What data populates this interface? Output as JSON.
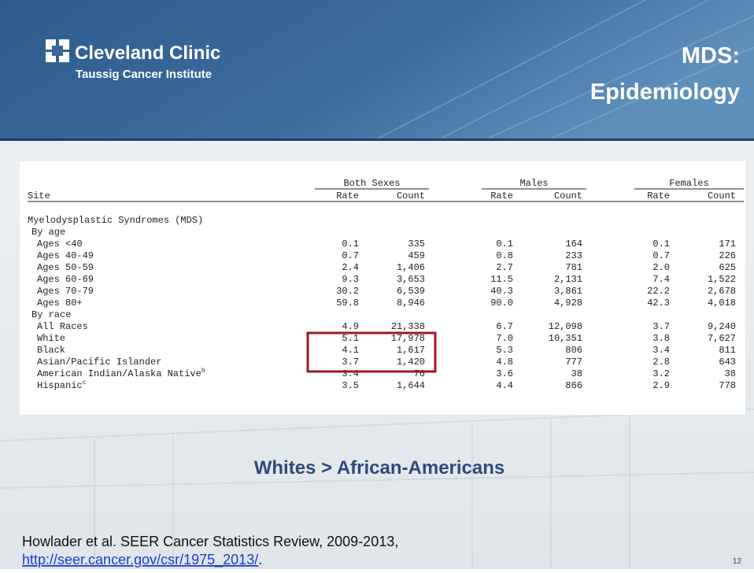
{
  "header": {
    "logo_name": "Cleveland Clinic",
    "logo_subtitle": "Taussig Cancer Institute",
    "title_lines": [
      "MDS:",
      "Epidemiology"
    ]
  },
  "table": {
    "site_header": "Site",
    "groups": [
      "Both Sexes",
      "Males",
      "Females"
    ],
    "columns": [
      "Rate",
      "Count",
      "Rate",
      "Count",
      "Rate",
      "Count"
    ],
    "sections": [
      {
        "title": "Myelodysplastic Syndromes (MDS)",
        "groups": [
          {
            "title": "By age",
            "rows": [
              {
                "label": "Ages <40",
                "cells": [
                  "0.1",
                  "335",
                  "0.1",
                  "164",
                  "0.1",
                  "171"
                ]
              },
              {
                "label": "Ages 40-49",
                "cells": [
                  "0.7",
                  "459",
                  "0.8",
                  "233",
                  "0.7",
                  "226"
                ]
              },
              {
                "label": "Ages 50-59",
                "cells": [
                  "2.4",
                  "1,406",
                  "2.7",
                  "781",
                  "2.0",
                  "625"
                ]
              },
              {
                "label": "Ages 60-69",
                "cells": [
                  "9.3",
                  "3,653",
                  "11.5",
                  "2,131",
                  "7.4",
                  "1,522"
                ]
              },
              {
                "label": "Ages 70-79",
                "cells": [
                  "30.2",
                  "6,539",
                  "40.3",
                  "3,861",
                  "22.2",
                  "2,678"
                ]
              },
              {
                "label": "Ages 80+",
                "cells": [
                  "59.8",
                  "8,946",
                  "90.0",
                  "4,928",
                  "42.3",
                  "4,018"
                ]
              }
            ]
          },
          {
            "title": "By race",
            "rows": [
              {
                "label": "All Races",
                "cells": [
                  "4.9",
                  "21,338",
                  "6.7",
                  "12,098",
                  "3.7",
                  "9,240"
                ]
              },
              {
                "label": "White",
                "cells": [
                  "5.1",
                  "17,978",
                  "7.0",
                  "10,351",
                  "3.8",
                  "7,627"
                ]
              },
              {
                "label": "Black",
                "cells": [
                  "4.1",
                  "1,617",
                  "5.3",
                  "806",
                  "3.4",
                  "811"
                ]
              },
              {
                "label": "Asian/Pacific Islander",
                "cells": [
                  "3.7",
                  "1,420",
                  "4.8",
                  "777",
                  "2.8",
                  "643"
                ]
              },
              {
                "label": "American Indian/Alaska Native",
                "note": "b",
                "cells": [
                  "3.4",
                  "76",
                  "3.6",
                  "38",
                  "3.2",
                  "38"
                ]
              },
              {
                "label": "Hispanic",
                "note": "c",
                "cells": [
                  "3.5",
                  "1,644",
                  "4.4",
                  "866",
                  "2.9",
                  "778"
                ]
              }
            ]
          }
        ]
      }
    ]
  },
  "callout": "Whites > African-Americans",
  "citation": {
    "text": "Howlader et al. SEER Cancer Statistics Review, 2009-2013,",
    "link": "http://seer.cancer.gov/csr/1975_2013/",
    "end": "."
  },
  "page_number": "12"
}
